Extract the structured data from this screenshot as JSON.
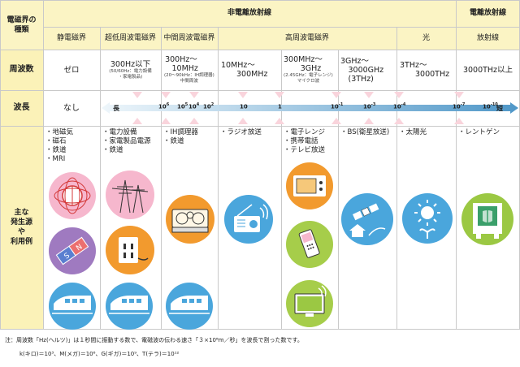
{
  "header": {
    "corner_label": "電磁界の\n種類",
    "nonionizing": "非電離放射線",
    "ionizing": "電離放射線"
  },
  "categories": [
    {
      "label": "静電磁界"
    },
    {
      "label": "超低周波電磁界"
    },
    {
      "label": "中間周波電磁界"
    },
    {
      "label": "高周波電磁界"
    },
    {
      "label": "光"
    },
    {
      "label": "放射線"
    }
  ],
  "rows": {
    "frequency": "周波数",
    "wavelength": "波長",
    "sources": "主な\n発生源\nや\n利用例"
  },
  "frequency": [
    {
      "main": "ゼロ",
      "sub": ""
    },
    {
      "main": "300Hz以下",
      "sub": "(50/60Hz：電力設備\n・家電製品)"
    },
    {
      "main": "300Hz〜\n　10MHz",
      "sub": "(20〜90kHz：IH調理器)\n中間周波"
    },
    {
      "main": "10MHz〜\n　　300MHz",
      "sub": ""
    },
    {
      "main": "300MHz〜\n　　3GHz",
      "sub": "(2.45GHz：電子レンジ)\nマイクロ波"
    },
    {
      "main": "3GHz〜\n　3000GHz\n　(3THz)",
      "sub": ""
    },
    {
      "main": "3THz〜\n　　3000THz",
      "sub": ""
    },
    {
      "main": "3000THz以上",
      "sub": ""
    }
  ],
  "wavelength": {
    "none": "なし",
    "long": "長",
    "short": "短",
    "ticks": [
      {
        "base": "10",
        "exp": "6"
      },
      {
        "base": "10",
        "exp": "5"
      },
      {
        "base": "10",
        "exp": "4"
      },
      {
        "base": "10",
        "exp": "2"
      },
      {
        "base": "10",
        "exp": ""
      },
      {
        "base": "1",
        "exp": ""
      },
      {
        "base": "10",
        "exp": "-1"
      },
      {
        "base": "10",
        "exp": "-3"
      },
      {
        "base": "10",
        "exp": "-4"
      },
      {
        "base": "10",
        "exp": "-7"
      },
      {
        "base": "10",
        "exp": "-10"
      }
    ]
  },
  "sources": [
    {
      "items": [
        "地磁気",
        "磁石",
        "鉄道",
        "MRI"
      ]
    },
    {
      "items": [
        "電力設備",
        "家電製品電源",
        "鉄道"
      ]
    },
    {
      "items": [
        "IH調理器",
        "鉄道"
      ]
    },
    {
      "items": [
        "ラジオ放送"
      ]
    },
    {
      "items": [
        "電子レンジ",
        "携帯電話",
        "テレビ放送"
      ]
    },
    {
      "items": [
        "BS(衛星放送)"
      ]
    },
    {
      "items": [
        "太陽光"
      ]
    },
    {
      "items": [
        "レントゲン"
      ]
    }
  ],
  "icons": {
    "s1": "earth-magnetic-field-icon",
    "s2": "bar-magnet-icon",
    "s3": "train-icon",
    "p1": "power-tower-icon",
    "p2": "power-outlet-icon",
    "i1": "ih-cooker-icon",
    "r1": "radio-icon",
    "m1": "microwave-oven-icon",
    "m2": "mobile-phone-icon",
    "m3": "television-icon",
    "b1": "satellite-icon",
    "l1": "sun-icon",
    "x1": "x-ray-machine-icon"
  },
  "colors": {
    "header_bg": "#fbf4c4",
    "pink": "#f6b7cd",
    "purple": "#9f7ac0",
    "blue": "#4aa6dc",
    "orange": "#f29a2e",
    "green": "#a6cd4a",
    "arrow_start": "#e9f3fa",
    "arrow_end": "#4f97c8"
  },
  "footnote": {
    "line1": "注：周波数「Hz(ヘルツ)」は１秒間に振動する数で、電磁波の伝わる速さ「３×10⁸m／秒」を波長で割った数です。",
    "line2": "k(キロ)＝10³、M(メガ)＝10⁶、G(ギガ)＝10⁹、T(テラ)＝10¹²"
  }
}
